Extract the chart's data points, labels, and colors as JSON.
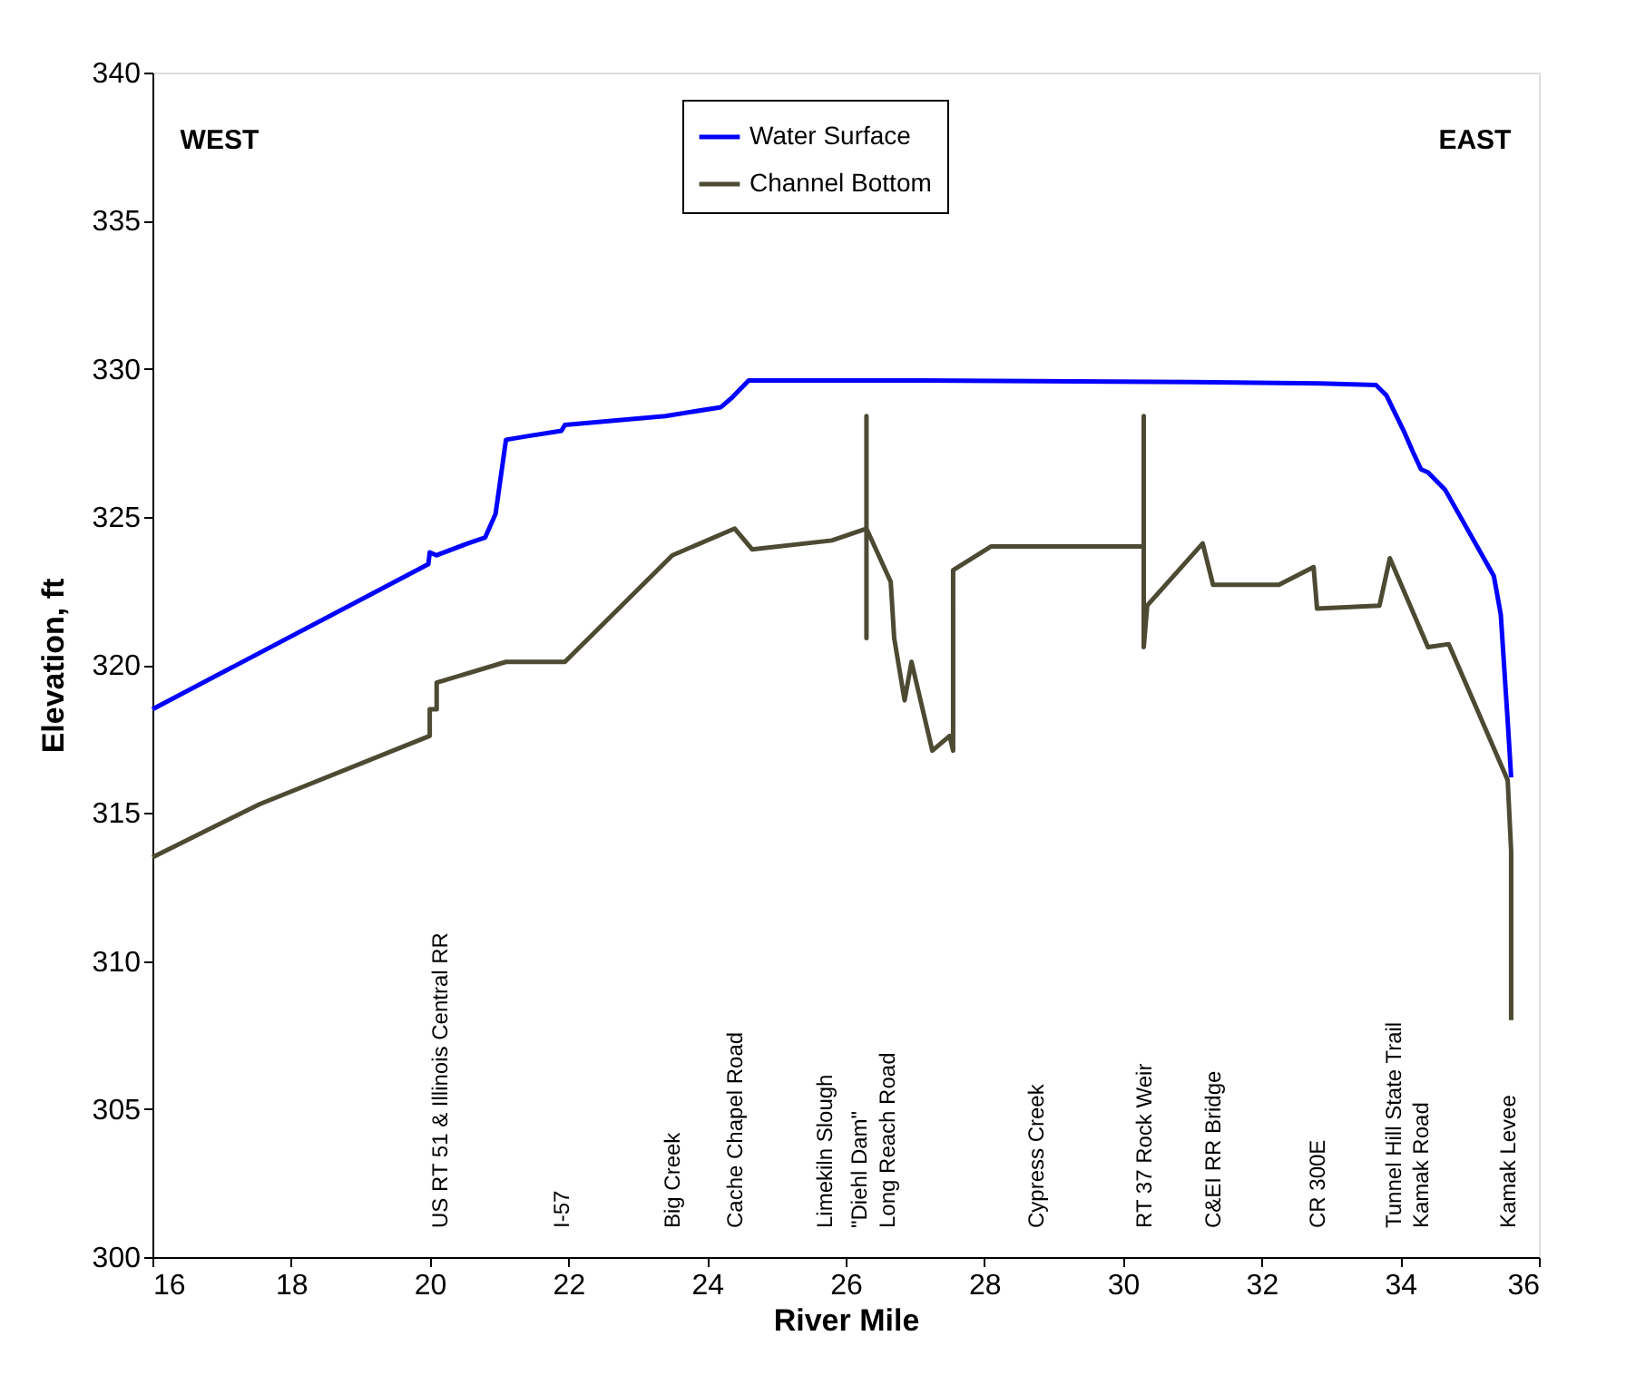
{
  "chart_data": {
    "type": "line",
    "xlabel": "River Mile",
    "ylabel": "Elevation, ft",
    "xlim": [
      16,
      36
    ],
    "ylim": [
      300,
      340
    ],
    "xticks": [
      16,
      18,
      20,
      22,
      24,
      26,
      28,
      30,
      32,
      34,
      36
    ],
    "yticks": [
      300,
      305,
      310,
      315,
      320,
      325,
      330,
      335,
      340
    ],
    "grid": false,
    "legend": "top",
    "marker": "none",
    "line_style": "solid",
    "series": [
      {
        "name": "Water Surface",
        "color": "#0000ff",
        "x": [
          16.0,
          19.98,
          20.0,
          20.1,
          20.55,
          20.8,
          20.95,
          21.1,
          21.35,
          21.9,
          21.95,
          23.4,
          24.2,
          24.35,
          24.6,
          27.0,
          31.0,
          32.85,
          33.65,
          33.8,
          34.05,
          34.2,
          34.3,
          34.4,
          34.65,
          35.35,
          35.45,
          35.55,
          35.6
        ],
        "values": [
          318.5,
          323.4,
          323.8,
          323.7,
          324.1,
          324.3,
          325.1,
          327.6,
          327.7,
          327.9,
          328.1,
          328.4,
          328.7,
          329.0,
          329.6,
          329.6,
          329.55,
          329.5,
          329.45,
          329.1,
          327.9,
          327.1,
          326.6,
          326.5,
          325.9,
          323.0,
          321.7,
          318.1,
          316.2
        ]
      },
      {
        "name": "Channel Bottom",
        "color": "#4d4a33",
        "x": [
          16.0,
          17.55,
          20.0,
          20.0,
          20.1,
          20.1,
          21.1,
          21.95,
          23.5,
          24.4,
          24.65,
          25.8,
          26.3,
          26.3,
          26.3,
          26.3,
          26.65,
          26.7,
          26.85,
          26.95,
          27.25,
          27.5,
          27.55,
          27.55,
          28.1,
          30.3,
          30.3,
          30.3,
          30.35,
          31.15,
          31.3,
          32.25,
          32.75,
          32.8,
          33.7,
          33.85,
          34.4,
          34.7,
          35.55,
          35.6,
          35.6,
          35.6
        ],
        "values": [
          313.5,
          315.3,
          317.6,
          318.5,
          318.5,
          319.4,
          320.1,
          320.1,
          323.7,
          324.6,
          323.9,
          324.2,
          324.6,
          328.4,
          320.9,
          324.6,
          322.8,
          320.9,
          318.8,
          320.1,
          317.1,
          317.6,
          317.1,
          323.2,
          324.0,
          324.0,
          328.4,
          320.6,
          322.0,
          324.1,
          322.7,
          322.7,
          323.3,
          321.9,
          322.0,
          323.6,
          320.6,
          320.7,
          316.1,
          313.7,
          312.7,
          308.0
        ]
      }
    ],
    "annotations": [
      "WEST",
      "EAST",
      "US RT 51 & Illinois Central RR",
      "I-57",
      "Big Creek",
      "Cache Chapel Road",
      "Limekiln Slough",
      "\"Diehl Dam\"",
      "Long Reach Road",
      "Cypress Creek",
      "RT 37 Rock Weir",
      "C&EI RR Bridge",
      "CR 300E",
      "Tunnel Hill State Trail",
      "Kamak Road",
      "Kamak Levee"
    ]
  }
}
